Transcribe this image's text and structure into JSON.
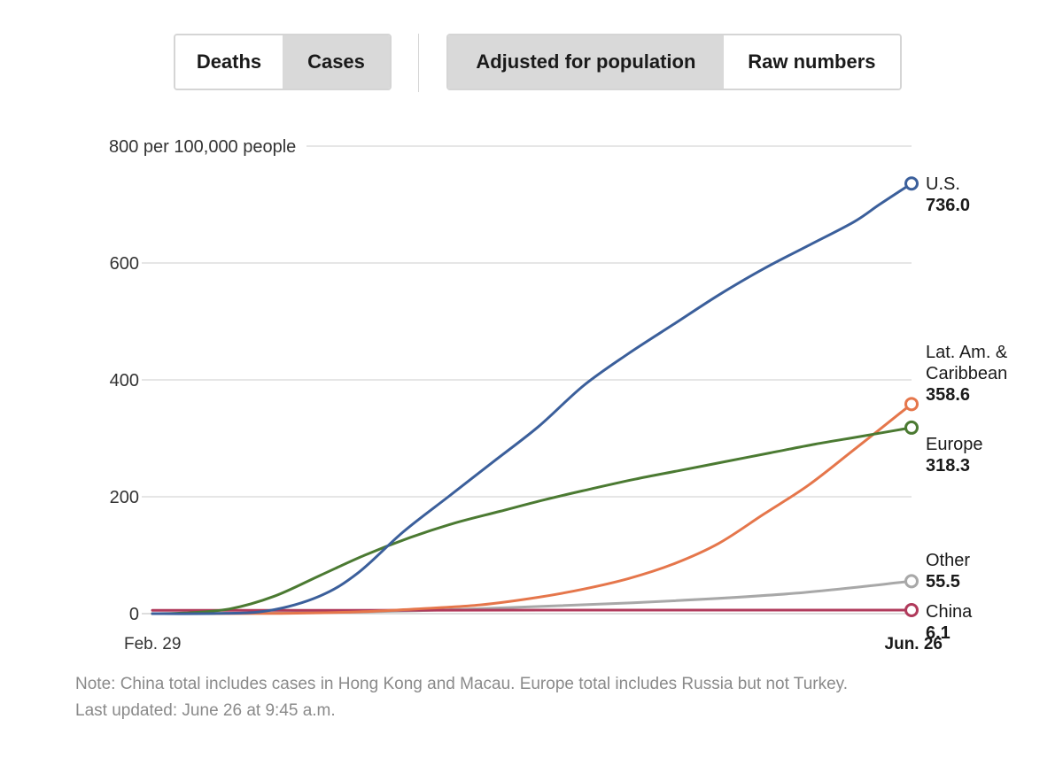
{
  "controls": {
    "metric": {
      "options": [
        "Deaths",
        "Cases"
      ],
      "selected": "Cases"
    },
    "scale": {
      "options": [
        "Adjusted for population",
        "Raw numbers"
      ],
      "selected": "Adjusted for population"
    }
  },
  "chart_data": {
    "type": "line",
    "title": "",
    "xlabel": "",
    "ylabel": "",
    "y_unit_label": "800 per 100,000 people",
    "y_ticks": [
      "0",
      "200",
      "400",
      "600"
    ],
    "ylim": [
      0,
      800
    ],
    "grid": true,
    "x_labels": {
      "start": "Feb. 29",
      "end": "Jun. 26"
    },
    "xlim": [
      "2020-02-29",
      "2020-06-26"
    ],
    "series": [
      {
        "name": "U.S.",
        "name_lines": [
          "U.S."
        ],
        "value_label": "736.0",
        "color": "#3b5f9b",
        "x": [
          "2020-02-29",
          "2020-03-10",
          "2020-03-18",
          "2020-03-26",
          "2020-04-01",
          "2020-04-08",
          "2020-04-15",
          "2020-04-22",
          "2020-04-29",
          "2020-05-06",
          "2020-05-13",
          "2020-05-20",
          "2020-05-27",
          "2020-06-03",
          "2020-06-10",
          "2020-06-17",
          "2020-06-21",
          "2020-06-26"
        ],
        "y": [
          0,
          0.3,
          5,
          30,
          70,
          140,
          200,
          260,
          320,
          390,
          445,
          495,
          545,
          590,
          630,
          670,
          700,
          736
        ]
      },
      {
        "name": "Lat. Am. & Caribbean",
        "name_lines": [
          "Lat. Am. &",
          "Caribbean"
        ],
        "value_label": "358.6",
        "color": "#e5764b",
        "x": [
          "2020-02-29",
          "2020-03-20",
          "2020-04-01",
          "2020-04-10",
          "2020-04-20",
          "2020-04-29",
          "2020-05-06",
          "2020-05-13",
          "2020-05-20",
          "2020-05-27",
          "2020-06-03",
          "2020-06-10",
          "2020-06-17",
          "2020-06-26"
        ],
        "y": [
          0,
          0.5,
          3,
          8,
          15,
          28,
          42,
          60,
          85,
          120,
          170,
          220,
          280,
          358.6
        ]
      },
      {
        "name": "Europe",
        "name_lines": [
          "Europe"
        ],
        "value_label": "318.3",
        "color": "#4b7a32",
        "x": [
          "2020-02-29",
          "2020-03-05",
          "2020-03-12",
          "2020-03-19",
          "2020-03-26",
          "2020-04-02",
          "2020-04-09",
          "2020-04-16",
          "2020-04-23",
          "2020-04-30",
          "2020-05-07",
          "2020-05-14",
          "2020-05-21",
          "2020-05-28",
          "2020-06-04",
          "2020-06-11",
          "2020-06-18",
          "2020-06-26"
        ],
        "y": [
          0,
          1,
          8,
          30,
          65,
          100,
          130,
          155,
          175,
          195,
          213,
          230,
          245,
          260,
          275,
          290,
          303,
          318.3
        ]
      },
      {
        "name": "Other",
        "name_lines": [
          "Other"
        ],
        "value_label": "55.5",
        "color": "#a8a8a8",
        "x": [
          "2020-02-29",
          "2020-03-20",
          "2020-04-10",
          "2020-05-01",
          "2020-05-20",
          "2020-06-08",
          "2020-06-26"
        ],
        "y": [
          0,
          1,
          5,
          13,
          22,
          35,
          55.5
        ]
      },
      {
        "name": "China",
        "name_lines": [
          "China"
        ],
        "value_label": "6.1",
        "color": "#b03a5b",
        "x": [
          "2020-02-29",
          "2020-03-31",
          "2020-04-30",
          "2020-05-31",
          "2020-06-26"
        ],
        "y": [
          5.7,
          5.8,
          6.0,
          6.05,
          6.1
        ]
      }
    ]
  },
  "footnotes": {
    "note": "Note: China total includes cases in Hong Kong and Macau. Europe total includes Russia but not Turkey.",
    "updated": "Last updated: June 26 at 9:45 a.m."
  }
}
